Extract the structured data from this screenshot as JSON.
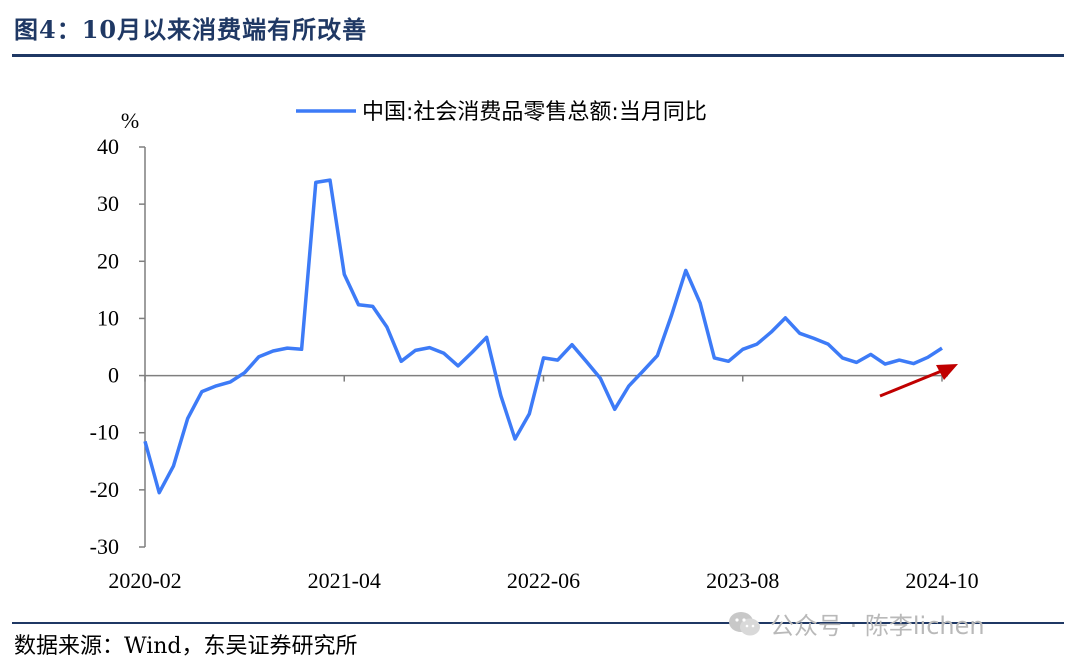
{
  "title": "图4：10月以来消费端有所改善",
  "source": "数据来源：Wind，东吴证券研究所",
  "watermark": "公众号 · 陈李lichen",
  "chart_data": {
    "type": "line",
    "title": "",
    "ylabel": "%",
    "xlabel": "",
    "ylim": [
      -30,
      40
    ],
    "yticks": [
      -30,
      -20,
      -10,
      0,
      10,
      20,
      30,
      40
    ],
    "xtick_labels": [
      "2020-02",
      "2021-04",
      "2022-06",
      "2023-08",
      "2024-10"
    ],
    "legend_position": "top",
    "grid": false,
    "line_color": "#3d7bf7",
    "arrow_color": "#c00000",
    "series": [
      {
        "name": "中国:社会消费品零售总额:当月同比",
        "x": [
          "2020-02",
          "2020-03",
          "2020-04",
          "2020-05",
          "2020-06",
          "2020-07",
          "2020-08",
          "2020-09",
          "2020-10",
          "2020-11",
          "2020-12",
          "2021-01",
          "2021-02",
          "2021-03",
          "2021-04",
          "2021-05",
          "2021-06",
          "2021-07",
          "2021-08",
          "2021-09",
          "2021-10",
          "2021-11",
          "2021-12",
          "2022-01",
          "2022-02",
          "2022-03",
          "2022-04",
          "2022-05",
          "2022-06",
          "2022-07",
          "2022-08",
          "2022-09",
          "2022-10",
          "2022-11",
          "2022-12",
          "2023-01",
          "2023-02",
          "2023-03",
          "2023-04",
          "2023-05",
          "2023-06",
          "2023-07",
          "2023-08",
          "2023-09",
          "2023-10",
          "2023-11",
          "2023-12",
          "2024-01",
          "2024-02",
          "2024-03",
          "2024-04",
          "2024-05",
          "2024-06",
          "2024-07",
          "2024-08",
          "2024-09",
          "2024-10"
        ],
        "values": [
          -11.5,
          -20.5,
          -15.8,
          -7.5,
          -2.8,
          -1.8,
          -1.1,
          0.5,
          3.3,
          4.3,
          4.8,
          4.6,
          33.8,
          34.2,
          17.7,
          12.4,
          12.1,
          8.5,
          2.5,
          4.4,
          4.9,
          3.9,
          1.7,
          4.1,
          6.7,
          -3.5,
          -11.1,
          -6.7,
          3.1,
          2.7,
          5.4,
          2.5,
          -0.5,
          -5.9,
          -1.8,
          0.8,
          3.5,
          10.6,
          18.4,
          12.7,
          3.1,
          2.5,
          4.6,
          5.5,
          7.6,
          10.1,
          7.4,
          6.5,
          5.5,
          3.1,
          2.3,
          3.7,
          2.0,
          2.7,
          2.1,
          3.2,
          4.8
        ]
      }
    ]
  }
}
